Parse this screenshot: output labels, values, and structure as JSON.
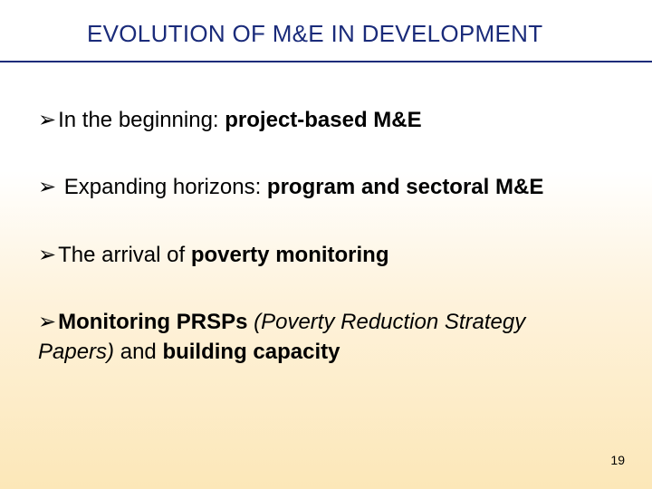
{
  "colors": {
    "title_color": "#1a2b7a",
    "underline_color": "#1a2b7a",
    "text_color": "#000000",
    "bg_top": "#ffffff",
    "bg_bottom": "#fce7b8"
  },
  "typography": {
    "title_fontsize": 26,
    "body_fontsize": 24,
    "pagenum_fontsize": 14,
    "font_family": "Arial"
  },
  "title": "EVOLUTION OF M&E IN DEVELOPMENT",
  "bullet_glyph": "➢",
  "bullets": [
    {
      "prefix": "In the beginning: ",
      "bold1": "project-based M&E",
      "mid": "",
      "italic": "",
      "tail": ""
    },
    {
      "prefix": " Expanding  horizons: ",
      "bold1": "program and sectoral M&E",
      "mid": "",
      "italic": "",
      "tail": ""
    },
    {
      "prefix": "The arrival of ",
      "bold1": "poverty monitoring",
      "mid": "",
      "italic": "",
      "tail": ""
    },
    {
      "prefix": "",
      "bold1": "Monitoring PRSPs ",
      "mid": "",
      "italic": "(Poverty Reduction Strategy Papers)",
      "tail_prefix": " and ",
      "bold2": "building capacity"
    }
  ],
  "page_number": "19"
}
